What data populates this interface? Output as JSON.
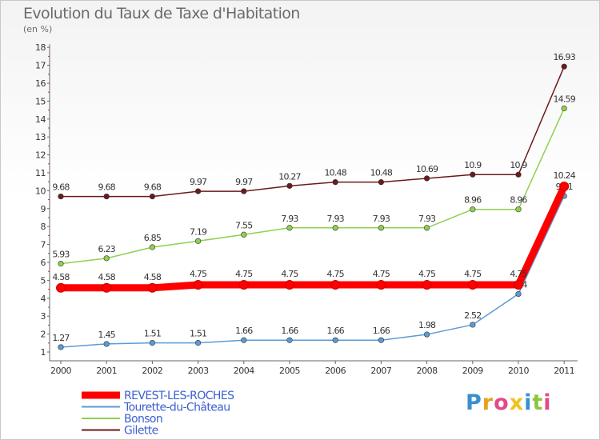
{
  "title": "Evolution du Taux de Taxe d'Habitation",
  "subtitle": "(en %)",
  "logo": {
    "letters": [
      "P",
      "r",
      "o",
      "x",
      "i",
      "t",
      "i"
    ],
    "colors": [
      "#3a8fd0",
      "#e8a020",
      "#e34a8a",
      "#f2c21c",
      "#3a8fd0",
      "#8cc63f",
      "#e34a8a"
    ]
  },
  "chart_data": {
    "type": "line",
    "x": [
      2000,
      2001,
      2002,
      2003,
      2004,
      2005,
      2006,
      2007,
      2008,
      2009,
      2010,
      2011
    ],
    "ylim": [
      0.5,
      18
    ],
    "yticks": [
      1,
      2,
      3,
      4,
      5,
      6,
      7,
      8,
      9,
      10,
      11,
      12,
      13,
      14,
      15,
      16,
      17,
      18
    ],
    "grid": false,
    "legend_position": "bottom-left",
    "series": [
      {
        "name": "Gilette",
        "color": "#6b1a1a",
        "values": [
          9.68,
          9.68,
          9.68,
          9.97,
          9.97,
          10.27,
          10.48,
          10.48,
          10.69,
          10.9,
          10.9,
          16.93
        ],
        "labels": [
          "9.68",
          "9.68",
          "9.68",
          "9.97",
          "9.97",
          "10.27",
          "10.48",
          "10.48",
          "10.69",
          "10.9",
          "10.9",
          "16.93"
        ]
      },
      {
        "name": "Bonson",
        "color": "#90d050",
        "values": [
          5.93,
          6.23,
          6.85,
          7.19,
          7.55,
          7.93,
          7.93,
          7.93,
          7.93,
          8.96,
          8.96,
          14.59
        ],
        "labels": [
          "5.93",
          "6.23",
          "6.85",
          "7.19",
          "7.55",
          "7.93",
          "7.93",
          "7.93",
          "7.93",
          "8.96",
          "8.96",
          "14.59"
        ]
      },
      {
        "name": "Tourette-du-Château",
        "color": "#5b9bd5",
        "values": [
          1.27,
          1.45,
          1.51,
          1.51,
          1.66,
          1.66,
          1.66,
          1.66,
          1.98,
          2.52,
          4.24,
          9.71
        ],
        "labels": [
          "1.27",
          "1.45",
          "1.51",
          "1.51",
          "1.66",
          "1.66",
          "1.66",
          "1.66",
          "1.98",
          "2.52",
          "4.24",
          "9.71"
        ]
      },
      {
        "name": "REVEST-LES-ROCHES",
        "color": "#ff0000",
        "values": [
          4.58,
          4.58,
          4.58,
          4.75,
          4.75,
          4.75,
          4.75,
          4.75,
          4.75,
          4.75,
          4.75,
          10.24
        ],
        "labels": [
          "4.58",
          "4.58",
          "4.58",
          "4.75",
          "4.75",
          "4.75",
          "4.75",
          "4.75",
          "4.75",
          "4.75",
          "4.75",
          "10.24"
        ]
      }
    ],
    "legend_order": [
      "REVEST-LES-ROCHES",
      "Tourette-du-Château",
      "Bonson",
      "Gilette"
    ],
    "legend_text_color": "#3a5fd0"
  }
}
